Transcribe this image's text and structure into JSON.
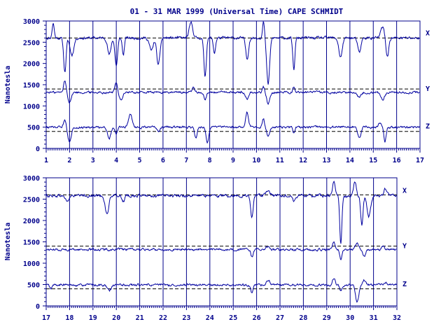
{
  "title": "01 - 31 MAR 1999 (Universal Time) CAPE SCHMIDT",
  "colors": {
    "axis": "#00008b",
    "trace": "#0000a0",
    "background": "#ffffff"
  },
  "chart_data": [
    {
      "type": "line",
      "ylabel": "Nanotesla",
      "xlim": [
        1,
        17
      ],
      "ylim": [
        0,
        3000
      ],
      "xticks": [
        "1",
        "2",
        "3",
        "4",
        "5",
        "6",
        "7",
        "8",
        "9",
        "10",
        "11",
        "12",
        "13",
        "14",
        "15",
        "16",
        "17"
      ],
      "yticks": [
        "0",
        "500",
        "1000",
        "1500",
        "2000",
        "2500",
        "3000"
      ],
      "grid": "vertical lines at day boundaries",
      "reference_lines": [
        2600,
        1400,
        400
      ],
      "series": [
        {
          "name": "X",
          "baseline": 2600,
          "events": [
            {
              "day": 1.3,
              "value": 2950
            },
            {
              "day": 1.8,
              "value": 1800
            },
            {
              "day": 2.1,
              "value": 2200
            },
            {
              "day": 3.7,
              "value": 2200
            },
            {
              "day": 4.0,
              "value": 1950
            },
            {
              "day": 4.3,
              "value": 2200
            },
            {
              "day": 5.5,
              "value": 2300
            },
            {
              "day": 5.8,
              "value": 1950
            },
            {
              "day": 7.2,
              "value": 2950
            },
            {
              "day": 7.8,
              "value": 1700
            },
            {
              "day": 8.2,
              "value": 2250
            },
            {
              "day": 9.6,
              "value": 2100
            },
            {
              "day": 10.3,
              "value": 3000
            },
            {
              "day": 10.5,
              "value": 1500
            },
            {
              "day": 11.6,
              "value": 1850
            },
            {
              "day": 13.6,
              "value": 2150
            },
            {
              "day": 14.4,
              "value": 2250
            },
            {
              "day": 15.4,
              "value": 2850
            },
            {
              "day": 15.6,
              "value": 2150
            }
          ]
        },
        {
          "name": "Y",
          "baseline": 1320,
          "events": [
            {
              "day": 1.8,
              "value": 1600
            },
            {
              "day": 2.0,
              "value": 1100
            },
            {
              "day": 4.0,
              "value": 1550
            },
            {
              "day": 4.2,
              "value": 1150
            },
            {
              "day": 7.3,
              "value": 1450
            },
            {
              "day": 7.8,
              "value": 1150
            },
            {
              "day": 9.6,
              "value": 1150
            },
            {
              "day": 10.3,
              "value": 1450
            },
            {
              "day": 10.5,
              "value": 1050
            },
            {
              "day": 11.6,
              "value": 1450
            },
            {
              "day": 14.4,
              "value": 1200
            },
            {
              "day": 15.4,
              "value": 1150
            }
          ]
        },
        {
          "name": "Z",
          "baseline": 500,
          "events": [
            {
              "day": 1.8,
              "value": 700
            },
            {
              "day": 2.0,
              "value": 150
            },
            {
              "day": 3.7,
              "value": 250
            },
            {
              "day": 4.0,
              "value": 350
            },
            {
              "day": 4.6,
              "value": 800
            },
            {
              "day": 5.8,
              "value": 400
            },
            {
              "day": 7.4,
              "value": 250
            },
            {
              "day": 7.9,
              "value": 150
            },
            {
              "day": 9.6,
              "value": 850
            },
            {
              "day": 10.3,
              "value": 700
            },
            {
              "day": 10.5,
              "value": 300
            },
            {
              "day": 11.6,
              "value": 350
            },
            {
              "day": 14.4,
              "value": 250
            },
            {
              "day": 15.3,
              "value": 600
            },
            {
              "day": 15.5,
              "value": 150
            }
          ]
        }
      ]
    },
    {
      "type": "line",
      "ylabel": "Nanotesla",
      "xlim": [
        17,
        32
      ],
      "ylim": [
        0,
        3000
      ],
      "xticks": [
        "17",
        "18",
        "19",
        "20",
        "21",
        "22",
        "23",
        "24",
        "25",
        "26",
        "27",
        "28",
        "29",
        "30",
        "31",
        "32"
      ],
      "yticks": [
        "0",
        "500",
        "1000",
        "1500",
        "2000",
        "2500",
        "3000"
      ],
      "grid": "vertical lines at day boundaries",
      "reference_lines": [
        2600,
        1400,
        400
      ],
      "series": [
        {
          "name": "X",
          "baseline": 2580,
          "events": [
            {
              "day": 17.9,
              "value": 2450
            },
            {
              "day": 19.6,
              "value": 2150
            },
            {
              "day": 20.3,
              "value": 2450
            },
            {
              "day": 25.8,
              "value": 2050
            },
            {
              "day": 26.5,
              "value": 2700
            },
            {
              "day": 27.6,
              "value": 2450
            },
            {
              "day": 29.3,
              "value": 2900
            },
            {
              "day": 29.6,
              "value": 1450
            },
            {
              "day": 30.2,
              "value": 2900
            },
            {
              "day": 30.5,
              "value": 1900
            },
            {
              "day": 30.8,
              "value": 2100
            },
            {
              "day": 31.5,
              "value": 2750
            }
          ]
        },
        {
          "name": "Y",
          "baseline": 1320,
          "events": [
            {
              "day": 25.8,
              "value": 1150
            },
            {
              "day": 26.5,
              "value": 1400
            },
            {
              "day": 29.3,
              "value": 1500
            },
            {
              "day": 29.6,
              "value": 1100
            },
            {
              "day": 30.3,
              "value": 1450
            },
            {
              "day": 30.6,
              "value": 1150
            },
            {
              "day": 31.4,
              "value": 1400
            }
          ]
        },
        {
          "name": "Z",
          "baseline": 490,
          "events": [
            {
              "day": 17.2,
              "value": 400
            },
            {
              "day": 19.7,
              "value": 350
            },
            {
              "day": 25.8,
              "value": 300
            },
            {
              "day": 26.5,
              "value": 600
            },
            {
              "day": 29.3,
              "value": 650
            },
            {
              "day": 29.6,
              "value": 350
            },
            {
              "day": 30.3,
              "value": 100
            },
            {
              "day": 30.6,
              "value": 600
            },
            {
              "day": 31.5,
              "value": 550
            }
          ]
        }
      ]
    }
  ]
}
